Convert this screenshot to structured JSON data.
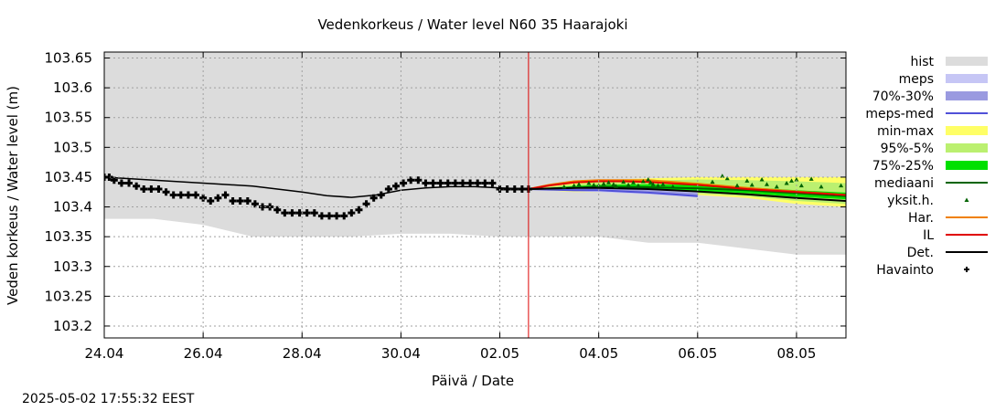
{
  "chart_data": {
    "type": "line",
    "title": "Vedenkorkeus / Water level   N60 35 Haarajoki",
    "xlabel": "Päivä / Date",
    "ylabel": "Veden korkeus / Water level (m)",
    "timestamp": "2025-05-02 17:55:32 EEST",
    "x_range_days": [
      0,
      15
    ],
    "x_ticks": [
      {
        "day": 0,
        "label": "24.04"
      },
      {
        "day": 2,
        "label": "26.04"
      },
      {
        "day": 4,
        "label": "28.04"
      },
      {
        "day": 6,
        "label": "30.04"
      },
      {
        "day": 8,
        "label": "02.05"
      },
      {
        "day": 10,
        "label": "04.05"
      },
      {
        "day": 12,
        "label": "06.05"
      },
      {
        "day": 14,
        "label": "08.05"
      }
    ],
    "ylim": [
      103.18,
      103.66
    ],
    "y_ticks": [
      "103.2",
      "103.25",
      "103.3",
      "103.35",
      "103.4",
      "103.45",
      "103.5",
      "103.55",
      "103.6",
      "103.65"
    ],
    "forecast_start_day": 8.58,
    "colors": {
      "hist": "#dcdcdc",
      "meps": "#c6c6f5",
      "p70_30": "#9a9ae0",
      "meps_med": "#5050d8",
      "min_max": "#ffff66",
      "p95_5": "#bbf070",
      "p75_25": "#00e000",
      "median": "#006400",
      "singles": "#006400",
      "har": "#f08000",
      "il": "#e00000",
      "det": "#000000",
      "obs": "#000000",
      "grid": "#a0a0a0",
      "now_line": "#dd0000"
    },
    "legend": [
      {
        "label": "hist",
        "kind": "box",
        "color": "#dcdcdc"
      },
      {
        "label": "meps",
        "kind": "box",
        "color": "#c6c6f5"
      },
      {
        "label": "70%-30%",
        "kind": "box",
        "color": "#9a9ae0"
      },
      {
        "label": "meps-med",
        "kind": "line",
        "color": "#5050d8"
      },
      {
        "label": "min-max",
        "kind": "box",
        "color": "#ffff66"
      },
      {
        "label": "95%-5%",
        "kind": "box",
        "color": "#bbf070"
      },
      {
        "label": "75%-25%",
        "kind": "box",
        "color": "#00e000"
      },
      {
        "label": "mediaani",
        "kind": "line",
        "color": "#006400"
      },
      {
        "label": "yksit.h.",
        "kind": "tri",
        "color": "#006400"
      },
      {
        "label": "Har.",
        "kind": "line",
        "color": "#f08000"
      },
      {
        "label": "IL",
        "kind": "line",
        "color": "#e00000"
      },
      {
        "label": "Det.",
        "kind": "line",
        "color": "#000000"
      },
      {
        "label": "Havainto",
        "kind": "plus",
        "color": "#000000"
      }
    ],
    "hist_range": {
      "x": [
        0,
        1,
        2,
        2.5,
        3,
        4,
        5,
        6,
        7,
        8,
        9,
        10,
        11,
        12,
        13,
        14,
        15
      ],
      "lower": [
        103.38,
        103.38,
        103.37,
        103.36,
        103.35,
        103.35,
        103.35,
        103.355,
        103.355,
        103.35,
        103.35,
        103.35,
        103.34,
        103.34,
        103.33,
        103.32,
        103.32
      ],
      "upper": [
        103.66,
        103.66,
        103.66,
        103.66,
        103.66,
        103.66,
        103.66,
        103.66,
        103.66,
        103.66,
        103.66,
        103.66,
        103.66,
        103.66,
        103.66,
        103.66,
        103.66
      ]
    },
    "observations": {
      "x": [
        0.0,
        0.1,
        0.2,
        0.35,
        0.5,
        0.65,
        0.8,
        0.95,
        1.1,
        1.25,
        1.4,
        1.55,
        1.7,
        1.85,
        2.0,
        2.15,
        2.3,
        2.45,
        2.6,
        2.75,
        2.9,
        3.05,
        3.2,
        3.35,
        3.5,
        3.65,
        3.8,
        3.95,
        4.1,
        4.25,
        4.4,
        4.55,
        4.7,
        4.85,
        5.0,
        5.15,
        5.3,
        5.45,
        5.6,
        5.75,
        5.9,
        6.05,
        6.2,
        6.35,
        6.5,
        6.65,
        6.8,
        6.95,
        7.1,
        7.25,
        7.4,
        7.55,
        7.7,
        7.85,
        8.0,
        8.15,
        8.3,
        8.45,
        8.58
      ],
      "y": [
        103.45,
        103.45,
        103.445,
        103.44,
        103.44,
        103.435,
        103.43,
        103.43,
        103.43,
        103.425,
        103.42,
        103.42,
        103.42,
        103.42,
        103.415,
        103.41,
        103.415,
        103.42,
        103.41,
        103.41,
        103.41,
        103.405,
        103.4,
        103.4,
        103.395,
        103.39,
        103.39,
        103.39,
        103.39,
        103.39,
        103.385,
        103.385,
        103.385,
        103.385,
        103.39,
        103.395,
        103.405,
        103.415,
        103.42,
        103.43,
        103.435,
        103.44,
        103.445,
        103.445,
        103.44,
        103.44,
        103.44,
        103.44,
        103.44,
        103.44,
        103.44,
        103.44,
        103.44,
        103.44,
        103.43,
        103.43,
        103.43,
        103.43,
        103.43
      ]
    },
    "det_history": {
      "x": [
        0,
        1,
        2,
        3,
        4,
        4.5,
        5,
        5.5,
        6,
        6.5,
        7,
        7.5,
        8,
        8.58
      ],
      "y": [
        103.45,
        103.445,
        103.44,
        103.435,
        103.425,
        103.419,
        103.416,
        103.42,
        103.428,
        103.432,
        103.434,
        103.434,
        103.432,
        103.43
      ]
    },
    "forecast": {
      "min_max": {
        "x": [
          8.58,
          9.5,
          10,
          11,
          12,
          13,
          14,
          15
        ],
        "lower": [
          103.43,
          103.425,
          103.425,
          103.425,
          103.42,
          103.415,
          103.405,
          103.4
        ],
        "upper": [
          103.43,
          103.44,
          103.445,
          103.448,
          103.45,
          103.45,
          103.45,
          103.45
        ]
      },
      "p95_5": {
        "x": [
          8.58,
          9.5,
          10,
          11,
          12,
          13,
          14,
          15
        ],
        "lower": [
          103.43,
          103.427,
          103.427,
          103.426,
          103.422,
          103.418,
          103.41,
          103.405
        ],
        "upper": [
          103.43,
          103.438,
          103.442,
          103.444,
          103.446,
          103.445,
          103.443,
          103.44
        ]
      },
      "p75_25": {
        "x": [
          8.58,
          9.5,
          10,
          11,
          12,
          13,
          14,
          15
        ],
        "lower": [
          103.43,
          103.429,
          103.43,
          103.43,
          103.427,
          103.423,
          103.417,
          103.413
        ],
        "upper": [
          103.43,
          103.435,
          103.437,
          103.438,
          103.437,
          103.433,
          103.428,
          103.424
        ]
      },
      "meps": {
        "x": [
          8.58,
          9.5,
          10,
          11,
          12
        ],
        "lower": [
          103.43,
          103.426,
          103.425,
          103.421,
          103.416
        ],
        "upper": [
          103.43,
          103.433,
          103.433,
          103.431,
          103.426
        ]
      },
      "p70_30": {
        "x": [
          8.58,
          9.5,
          10,
          11,
          12
        ],
        "lower": [
          103.43,
          103.428,
          103.427,
          103.424,
          103.419
        ],
        "upper": [
          103.43,
          103.431,
          103.431,
          103.428,
          103.423
        ]
      },
      "meps_med": {
        "x": [
          8.58,
          9.0,
          9.5,
          10,
          10.5,
          11,
          11.5,
          12
        ],
        "y": [
          103.43,
          103.429,
          103.428,
          103.428,
          103.426,
          103.424,
          103.421,
          103.418
        ]
      },
      "median": {
        "x": [
          8.58,
          9.5,
          10,
          11,
          12,
          13,
          14,
          15
        ],
        "y": [
          103.43,
          103.432,
          103.434,
          103.433,
          103.431,
          103.428,
          103.423,
          103.418
        ]
      },
      "har": {
        "x": [
          8.58,
          9.0,
          9.5,
          10,
          10.5,
          11,
          12,
          13,
          14,
          15
        ],
        "y": [
          103.43,
          103.437,
          103.443,
          103.445,
          103.445,
          103.445,
          103.439,
          103.432,
          103.426,
          103.42
        ]
      },
      "il": {
        "x": [
          8.58,
          9.0,
          9.5,
          10,
          10.5,
          11,
          12,
          13,
          14,
          15
        ],
        "y": [
          103.43,
          103.436,
          103.441,
          103.443,
          103.443,
          103.442,
          103.437,
          103.43,
          103.425,
          103.42
        ]
      },
      "det": {
        "x": [
          8.58,
          9.5,
          10,
          11,
          12,
          13,
          14,
          15
        ],
        "y": [
          103.43,
          103.432,
          103.432,
          103.43,
          103.426,
          103.421,
          103.415,
          103.41
        ]
      },
      "singles": {
        "x": [
          9.3,
          9.5,
          9.6,
          9.8,
          9.9,
          10.0,
          10.1,
          10.2,
          10.3,
          10.35,
          10.5,
          10.6,
          10.7,
          10.8,
          10.9,
          11.0,
          11.05,
          11.1,
          11.2,
          11.3,
          11.5,
          12.3,
          12.5,
          12.6,
          12.8,
          13.0,
          13.1,
          13.3,
          13.4,
          13.6,
          13.8,
          13.9,
          14.0,
          14.1,
          14.3,
          14.5,
          14.9
        ],
        "y": [
          103.434,
          103.436,
          103.438,
          103.44,
          103.437,
          103.436,
          103.439,
          103.441,
          103.438,
          103.435,
          103.442,
          103.437,
          103.441,
          103.436,
          103.443,
          103.446,
          103.441,
          103.438,
          103.436,
          103.438,
          103.434,
          103.442,
          103.452,
          103.448,
          103.436,
          103.444,
          103.437,
          103.446,
          103.438,
          103.434,
          103.44,
          103.444,
          103.446,
          103.436,
          103.447,
          103.434,
          103.436
        ]
      }
    }
  }
}
